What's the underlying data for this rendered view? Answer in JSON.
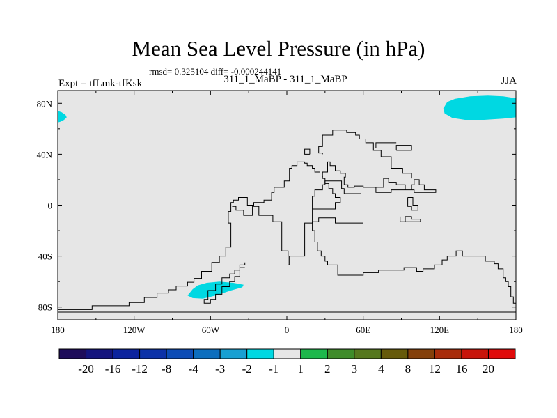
{
  "chart_data": {
    "type": "heatmap",
    "title": "Mean Sea Level Pressure (in hPa)",
    "stats": "rmsd= 0.325104 diff= -0.000244141",
    "experiment": "Expt = tfLmk-tfKsk",
    "subtitle": "311_1_MaBP - 311_1_MaBP",
    "season": "JJA",
    "xlim": [
      -180,
      180
    ],
    "ylim": [
      -90,
      90
    ],
    "xticks": [
      {
        "value": -180,
        "label": "180"
      },
      {
        "value": -120,
        "label": "120W"
      },
      {
        "value": -60,
        "label": "60W"
      },
      {
        "value": 0,
        "label": "0"
      },
      {
        "value": 60,
        "label": "60E"
      },
      {
        "value": 120,
        "label": "120E"
      },
      {
        "value": 180,
        "label": "180"
      }
    ],
    "yticks": [
      {
        "value": 80,
        "label": "80N"
      },
      {
        "value": 40,
        "label": "40N"
      },
      {
        "value": 0,
        "label": "0"
      },
      {
        "value": -40,
        "label": "40S"
      },
      {
        "value": -80,
        "label": "80S"
      }
    ],
    "background_color": "#e6e6e6",
    "levels": [
      "-20",
      "-16",
      "-12",
      "-8",
      "-4",
      "-3",
      "-2",
      "-1",
      "1",
      "2",
      "3",
      "4",
      "8",
      "12",
      "16",
      "20"
    ],
    "colors": [
      "#1e0c5a",
      "#14147e",
      "#0c239e",
      "#0c32a8",
      "#0c4cb6",
      "#0c6ebe",
      "#18a0d2",
      "#00d8e2",
      "#e6e6e6",
      "#1eb84c",
      "#3f8c2a",
      "#56781e",
      "#665a0a",
      "#84400a",
      "#a82c0a",
      "#c8140a",
      "#e00a0a"
    ],
    "regions": [
      {
        "name": "anomaly-north-atlantic-left",
        "value_range": "-2 to -1",
        "color": "#00d8e2",
        "polygon": [
          [
            -180,
            74
          ],
          [
            -177,
            73
          ],
          [
            -174,
            71
          ],
          [
            -173,
            69
          ],
          [
            -175,
            67
          ],
          [
            -178,
            65.5
          ],
          [
            -180,
            65
          ]
        ]
      },
      {
        "name": "anomaly-north-atlantic-right",
        "value_range": "-2 to -1",
        "color": "#00d8e2",
        "polygon": [
          [
            180,
            84
          ],
          [
            170,
            85.5
          ],
          [
            158,
            86
          ],
          [
            144,
            85.5
          ],
          [
            132,
            83.5
          ],
          [
            126,
            81
          ],
          [
            123,
            76
          ],
          [
            124,
            72
          ],
          [
            130,
            68.5
          ],
          [
            140,
            67
          ],
          [
            155,
            67
          ],
          [
            170,
            68
          ],
          [
            180,
            69
          ]
        ]
      },
      {
        "name": "anomaly-south-atlantic",
        "value_range": "-2 to -1",
        "color": "#00d8e2",
        "polygon": [
          [
            -74,
            -66
          ],
          [
            -70,
            -63
          ],
          [
            -63,
            -61
          ],
          [
            -53,
            -60
          ],
          [
            -42,
            -61
          ],
          [
            -34,
            -62.5
          ],
          [
            -35,
            -64.5
          ],
          [
            -44,
            -67
          ],
          [
            -56,
            -71
          ],
          [
            -66,
            -73.5
          ],
          [
            -74,
            -73
          ],
          [
            -78,
            -71
          ]
        ]
      }
    ],
    "coastlines": [
      [
        [
          -180,
          -80
        ],
        [
          -180,
          -82
        ],
        [
          -153,
          -82
        ],
        [
          -153,
          -79
        ],
        [
          -124,
          -79
        ],
        [
          -124,
          -76.5
        ],
        [
          -112,
          -76.5
        ],
        [
          -112,
          -72.5
        ],
        [
          -102,
          -72.5
        ],
        [
          -102,
          -69
        ],
        [
          -93,
          -69
        ],
        [
          -93,
          -66.5
        ],
        [
          -87,
          -66.5
        ],
        [
          -87,
          -63.5
        ],
        [
          -78,
          -63.5
        ],
        [
          -78,
          -60.5
        ],
        [
          -73,
          -60.5
        ],
        [
          -73,
          -57.5
        ],
        [
          -67,
          -57.5
        ],
        [
          -67,
          -52
        ],
        [
          -59,
          -52
        ],
        [
          -59,
          -45
        ],
        [
          -53,
          -45
        ],
        [
          -53,
          -40
        ],
        [
          -48,
          -40
        ],
        [
          -48,
          -33
        ],
        [
          -44,
          -33
        ],
        [
          -44,
          -27
        ],
        [
          -44,
          -14
        ],
        [
          -46,
          -14
        ],
        [
          -46,
          -5
        ],
        [
          -44,
          -5
        ],
        [
          -44,
          2
        ],
        [
          -42,
          2
        ],
        [
          -42,
          4
        ],
        [
          -38,
          4
        ],
        [
          -38,
          6
        ],
        [
          -31,
          6
        ],
        [
          -31,
          0
        ],
        [
          -26,
          0
        ],
        [
          -26,
          2
        ],
        [
          -18,
          2
        ],
        [
          -18,
          4
        ],
        [
          -12,
          4
        ],
        [
          -12,
          10
        ],
        [
          -10,
          10
        ],
        [
          -10,
          14
        ],
        [
          -2,
          14
        ],
        [
          -2,
          19
        ],
        [
          2,
          19
        ],
        [
          2,
          29
        ],
        [
          4,
          29
        ],
        [
          4,
          31
        ],
        [
          8,
          31
        ],
        [
          8,
          34
        ],
        [
          14,
          34
        ],
        [
          14,
          33
        ],
        [
          16,
          33
        ],
        [
          16,
          31
        ],
        [
          20,
          31
        ],
        [
          20,
          29
        ],
        [
          22,
          29
        ],
        [
          22,
          26
        ],
        [
          26,
          26
        ],
        [
          26,
          23
        ],
        [
          28,
          23
        ],
        [
          28,
          21
        ],
        [
          30,
          21
        ],
        [
          30,
          17
        ],
        [
          33,
          17
        ],
        [
          33,
          13
        ],
        [
          36,
          13
        ],
        [
          36,
          9
        ],
        [
          38,
          9
        ],
        [
          38,
          6
        ],
        [
          42,
          6
        ],
        [
          42,
          4
        ]
      ],
      [
        [
          42,
          4
        ],
        [
          42,
          2
        ],
        [
          38,
          2
        ],
        [
          38,
          -3
        ],
        [
          20,
          -3
        ],
        [
          20,
          -14
        ],
        [
          14,
          -14
        ],
        [
          14,
          -40
        ],
        [
          2,
          -40
        ],
        [
          2,
          -47
        ]
      ],
      [
        [
          2,
          -47
        ],
        [
          1,
          -47
        ],
        [
          1,
          -36
        ],
        [
          -4,
          -36
        ],
        [
          -4,
          -13
        ],
        [
          -11,
          -13
        ],
        [
          -11,
          -8
        ],
        [
          -22,
          -8
        ],
        [
          -22,
          -1
        ],
        [
          -27,
          -1
        ],
        [
          -27,
          -8
        ],
        [
          -34,
          -8
        ],
        [
          -34,
          -4
        ],
        [
          -40,
          -4
        ],
        [
          -40,
          -1
        ],
        [
          -43,
          -1
        ]
      ],
      [
        [
          -180,
          -84
        ],
        [
          180,
          -84
        ]
      ],
      [
        [
          -33,
          -45
        ],
        [
          -33,
          -47
        ],
        [
          -37,
          -47
        ],
        [
          -37,
          -51
        ],
        [
          -41,
          -51
        ],
        [
          -41,
          -54
        ],
        [
          -45,
          -54
        ],
        [
          -45,
          -57
        ],
        [
          -51,
          -57
        ],
        [
          -51,
          -62
        ],
        [
          -56,
          -62
        ],
        [
          -56,
          -67
        ],
        [
          -62,
          -67
        ],
        [
          -62,
          -74
        ],
        [
          -65,
          -74
        ],
        [
          -65,
          -77
        ],
        [
          -60,
          -77
        ],
        [
          -60,
          -74
        ],
        [
          -56,
          -74
        ],
        [
          -56,
          -70
        ],
        [
          -51,
          -70
        ],
        [
          -51,
          -64
        ],
        [
          -45,
          -64
        ],
        [
          -45,
          -60
        ],
        [
          -41,
          -60
        ],
        [
          -41,
          -56
        ],
        [
          -37,
          -56
        ],
        [
          -37,
          -49
        ],
        [
          -33,
          -49
        ]
      ],
      [
        [
          22,
          -29
        ],
        [
          24,
          -29
        ],
        [
          24,
          -36
        ],
        [
          27,
          -36
        ],
        [
          27,
          -40
        ],
        [
          30,
          -40
        ],
        [
          30,
          -44
        ],
        [
          32,
          -44
        ],
        [
          32,
          -47
        ],
        [
          40,
          -47
        ],
        [
          40,
          -55
        ],
        [
          60,
          -55
        ],
        [
          60,
          -53
        ],
        [
          72,
          -53
        ],
        [
          72,
          -51
        ],
        [
          92,
          -51
        ],
        [
          92,
          -49
        ],
        [
          102,
          -49
        ],
        [
          102,
          -52
        ],
        [
          107,
          -52
        ],
        [
          107,
          -50
        ],
        [
          116,
          -50
        ],
        [
          116,
          -47
        ],
        [
          122,
          -47
        ],
        [
          122,
          -43
        ],
        [
          126,
          -43
        ],
        [
          126,
          -40
        ],
        [
          133,
          -40
        ],
        [
          133,
          -36
        ],
        [
          138,
          -36
        ],
        [
          138,
          -40
        ],
        [
          156,
          -40
        ],
        [
          156,
          -44
        ],
        [
          163,
          -44
        ],
        [
          163,
          -46
        ],
        [
          166,
          -46
        ],
        [
          166,
          -50
        ],
        [
          170,
          -50
        ],
        [
          170,
          -57
        ],
        [
          172,
          -57
        ],
        [
          172,
          -60
        ],
        [
          174,
          -60
        ],
        [
          174,
          -64
        ],
        [
          176,
          -64
        ],
        [
          176,
          -72
        ],
        [
          178,
          -72
        ],
        [
          178,
          -77
        ],
        [
          180,
          -77
        ]
      ],
      [
        [
          60,
          -14
        ],
        [
          38,
          -14
        ],
        [
          38,
          -10
        ],
        [
          25,
          -10
        ],
        [
          25,
          -13
        ],
        [
          20,
          -13
        ],
        [
          20,
          -20
        ],
        [
          22,
          -20
        ],
        [
          22,
          -29
        ]
      ],
      [
        [
          20,
          -3
        ],
        [
          20,
          7
        ],
        [
          22,
          7
        ],
        [
          22,
          12
        ],
        [
          28,
          12
        ],
        [
          28,
          16
        ],
        [
          30,
          16
        ],
        [
          30,
          19
        ],
        [
          43,
          19
        ],
        [
          43,
          13
        ],
        [
          45,
          13
        ],
        [
          45,
          9
        ],
        [
          58,
          9
        ]
      ],
      [
        [
          28,
          22
        ],
        [
          28,
          26
        ],
        [
          32,
          26
        ],
        [
          32,
          34
        ],
        [
          34,
          34
        ],
        [
          34,
          31
        ],
        [
          38,
          31
        ],
        [
          38,
          27
        ],
        [
          42,
          27
        ],
        [
          42,
          25
        ],
        [
          46,
          25
        ],
        [
          46,
          22
        ],
        [
          45,
          22
        ],
        [
          45,
          16
        ],
        [
          48,
          16
        ],
        [
          48,
          14
        ],
        [
          53,
          14
        ],
        [
          53,
          15
        ],
        [
          60,
          15
        ],
        [
          60,
          14
        ],
        [
          70,
          14
        ],
        [
          70,
          10
        ],
        [
          82,
          10
        ],
        [
          82,
          12
        ],
        [
          98,
          12
        ],
        [
          98,
          16
        ],
        [
          100,
          16
        ],
        [
          100,
          20
        ],
        [
          104,
          20
        ],
        [
          104,
          16
        ],
        [
          108,
          16
        ],
        [
          108,
          12
        ],
        [
          117,
          12
        ],
        [
          117,
          10
        ],
        [
          100,
          10
        ],
        [
          100,
          12
        ],
        [
          93,
          12
        ],
        [
          93,
          16
        ],
        [
          86,
          16
        ],
        [
          86,
          18
        ],
        [
          80,
          18
        ],
        [
          80,
          21
        ],
        [
          76,
          21
        ],
        [
          76,
          14
        ],
        [
          70,
          14
        ]
      ],
      [
        [
          28,
          40
        ],
        [
          28,
          41
        ],
        [
          25,
          41
        ],
        [
          25,
          46
        ],
        [
          28,
          46
        ],
        [
          28,
          55
        ],
        [
          36,
          55
        ],
        [
          36,
          59
        ],
        [
          47,
          59
        ],
        [
          47,
          57
        ],
        [
          54,
          57
        ],
        [
          54,
          55
        ],
        [
          57,
          55
        ],
        [
          57,
          52
        ],
        [
          62,
          52
        ],
        [
          62,
          49
        ],
        [
          68,
          49
        ],
        [
          68,
          43
        ],
        [
          74,
          43
        ],
        [
          74,
          38
        ],
        [
          82,
          38
        ],
        [
          82,
          29
        ],
        [
          91,
          29
        ],
        [
          91,
          25
        ],
        [
          98,
          25
        ],
        [
          98,
          21
        ]
      ],
      [
        [
          18,
          40
        ],
        [
          18,
          44
        ],
        [
          14,
          44
        ],
        [
          14,
          40
        ],
        [
          18,
          40
        ]
      ],
      [
        [
          86,
          43
        ],
        [
          86,
          47
        ],
        [
          98,
          47
        ],
        [
          98,
          43
        ],
        [
          86,
          43
        ]
      ],
      [
        [
          70,
          45
        ],
        [
          70,
          49
        ],
        [
          86,
          49
        ]
      ],
      [
        [
          102,
          -13
        ],
        [
          105,
          -13
        ],
        [
          105,
          -11
        ],
        [
          98,
          -11
        ],
        [
          98,
          -9
        ],
        [
          93,
          -9
        ],
        [
          93,
          -13
        ],
        [
          102,
          -13
        ]
      ],
      [
        [
          95,
          6
        ],
        [
          95,
          -1
        ],
        [
          98,
          -1
        ],
        [
          98,
          -4
        ],
        [
          103,
          -4
        ],
        [
          103,
          0
        ],
        [
          99,
          0
        ],
        [
          99,
          6
        ],
        [
          95,
          6
        ]
      ],
      [
        [
          89,
          -9
        ],
        [
          89,
          -13
        ],
        [
          93,
          -13
        ]
      ]
    ]
  }
}
